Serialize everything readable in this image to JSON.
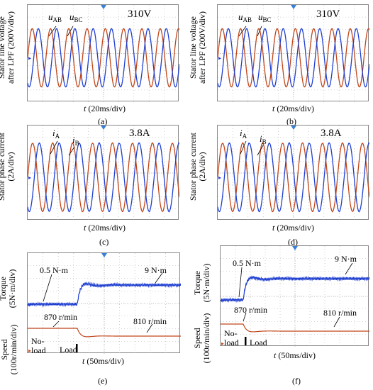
{
  "panels": [
    {
      "id": "a",
      "caption": "(a)",
      "ylabel": [
        "Stator line voltage",
        "after LPF (200V/div)"
      ],
      "xlabel": "t",
      "xunit": "(20ms/div)",
      "ann_value": "310V",
      "sig1": "u",
      "sig1_sub": "AB",
      "sig2": "u",
      "sig2_sub": "BC"
    },
    {
      "id": "b",
      "caption": "(b)",
      "ylabel": [
        "Stator line voltage",
        "after LPF (200V/div)"
      ],
      "xlabel": "t",
      "xunit": "(20ms/div)",
      "ann_value": "310V",
      "sig1": "u",
      "sig1_sub": "AB",
      "sig2": "u",
      "sig2_sub": "BC"
    },
    {
      "id": "c",
      "caption": "(c)",
      "ylabel": [
        "Stator phase current",
        "(2A/div)"
      ],
      "xlabel": "t",
      "xunit": "(20ms/div)",
      "ann_value": "3.8A",
      "sig1": "i",
      "sig1_sub": "A",
      "sig2": "i",
      "sig2_sub": "B"
    },
    {
      "id": "d",
      "caption": "(d)",
      "ylabel": [
        "Stator phase current",
        "(2A/div)"
      ],
      "xlabel": "t",
      "xunit": "(20ms/div)",
      "ann_value": "3.8A",
      "sig1": "i",
      "sig1_sub": "A",
      "sig2": "i",
      "sig2_sub": "B"
    },
    {
      "id": "e",
      "caption": "(e)",
      "ylabel_top": [
        "Torque",
        "(5N·m/div)"
      ],
      "ylabel_bot": [
        "Speed",
        "(100r/min/div)"
      ],
      "xlabel": "t",
      "xunit": "(50ms/div)",
      "torque_start": "0.5 N·m",
      "torque_end": "9 N·m",
      "speed_start": "870 r/min",
      "speed_end": "810 r/min",
      "noload": [
        "No-",
        "load"
      ],
      "load": "Load"
    },
    {
      "id": "f",
      "caption": "(f)",
      "ylabel_top": [
        "Torque",
        "(5N·m/div)"
      ],
      "ylabel_bot": [
        "Speed",
        "(100r/min/div)"
      ],
      "xlabel": "t",
      "xunit": "(50ms/div)",
      "torque_start": "0.5 N·m",
      "torque_end": "9 N·m",
      "speed_start": "870 r/min",
      "speed_end": "810 r/min",
      "noload": [
        "No-",
        "load"
      ],
      "load": "Load"
    }
  ],
  "colors": {
    "blue": "#1f3fd0",
    "red": "#c0461a",
    "grid": "#b0b0b0",
    "center": "#3a7fd6"
  },
  "chart_data": [
    {
      "type": "line",
      "panel": "a",
      "series": [
        {
          "name": "uAB",
          "amplitude": 310
        },
        {
          "name": "uBC",
          "amplitude": 310
        }
      ],
      "periods_per_div": 1,
      "x_div": "20ms",
      "y_div": "200V"
    },
    {
      "type": "line",
      "panel": "b",
      "series": [
        {
          "name": "uAB",
          "amplitude": 310
        },
        {
          "name": "uBC",
          "amplitude": 310
        }
      ],
      "periods_per_div": 1,
      "x_div": "20ms",
      "y_div": "200V"
    },
    {
      "type": "line",
      "panel": "c",
      "series": [
        {
          "name": "iA",
          "amplitude": 3.8
        },
        {
          "name": "iB",
          "amplitude": 3.8
        }
      ],
      "x_div": "20ms",
      "y_div": "2A"
    },
    {
      "type": "line",
      "panel": "d",
      "series": [
        {
          "name": "iA",
          "amplitude": 3.8
        },
        {
          "name": "iB",
          "amplitude": 3.8
        }
      ],
      "x_div": "20ms",
      "y_div": "2A"
    },
    {
      "type": "line",
      "panel": "e",
      "series": [
        {
          "name": "Torque",
          "start": 0.5,
          "end": 9
        },
        {
          "name": "Speed",
          "start": 870,
          "end": 810
        }
      ],
      "x_div": "50ms"
    },
    {
      "type": "line",
      "panel": "f",
      "series": [
        {
          "name": "Torque",
          "start": 0.5,
          "end": 9
        },
        {
          "name": "Speed",
          "start": 870,
          "end": 810
        }
      ],
      "x_div": "50ms"
    }
  ]
}
